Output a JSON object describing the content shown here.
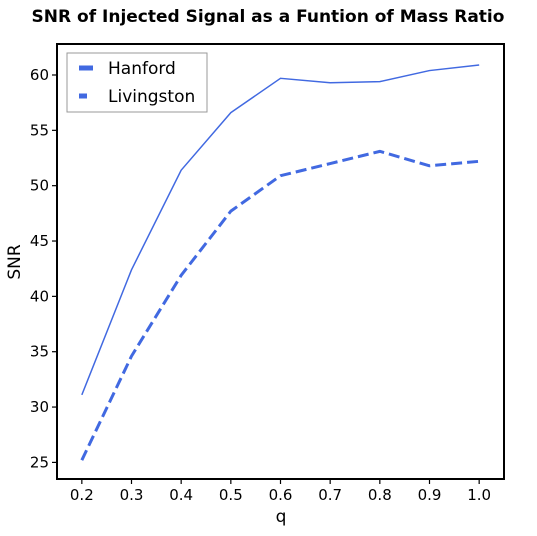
{
  "chart_data": {
    "type": "line",
    "title": "SNR of Injected Signal as a Funtion of Mass Ratio",
    "xlabel": "q",
    "ylabel": "SNR",
    "x": [
      0.2,
      0.3,
      0.4,
      0.5,
      0.6,
      0.7,
      0.8,
      0.9,
      1.0
    ],
    "xlim": [
      0.15,
      1.05
    ],
    "ylim": [
      23.5,
      62.8
    ],
    "xticks": [
      "0.2",
      "0.3",
      "0.4",
      "0.5",
      "0.6",
      "0.7",
      "0.8",
      "0.9",
      "1.0"
    ],
    "yticks": [
      "25",
      "30",
      "35",
      "40",
      "45",
      "50",
      "55",
      "60"
    ],
    "grid": false,
    "legend_position": "upper-left",
    "series": [
      {
        "name": "Hanford",
        "values": [
          31.1,
          42.4,
          51.4,
          56.6,
          59.7,
          59.3,
          59.4,
          60.4,
          60.9
        ],
        "color": "#4169e1",
        "style": "solid"
      },
      {
        "name": "Livingston",
        "values": [
          25.2,
          34.6,
          41.9,
          47.7,
          50.9,
          52.0,
          53.1,
          51.8,
          52.2
        ],
        "color": "#4169e1",
        "style": "dashed"
      }
    ]
  }
}
